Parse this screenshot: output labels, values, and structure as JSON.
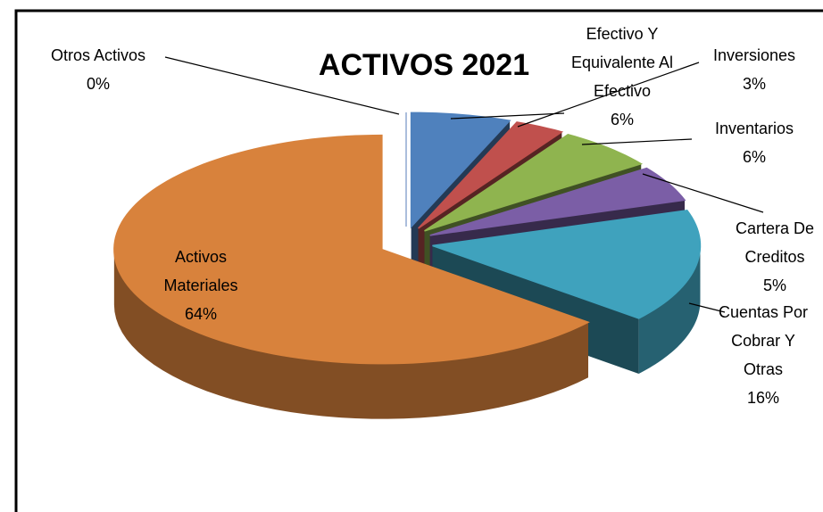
{
  "chart_data": {
    "type": "pie3d",
    "title": "ACTIVOS 2021",
    "categories": [
      "Otros Activos",
      "Efectivo Y Equivalente Al Efectivo",
      "Inversiones",
      "Inventarios",
      "Cartera De Creditos",
      "Cuentas Por Cobrar Y Otras",
      "Activos Materiales"
    ],
    "values": [
      0,
      6,
      3,
      6,
      5,
      16,
      64
    ],
    "value_labels": [
      "0%",
      "6%",
      "3%",
      "6%",
      "5%",
      "16%",
      "64%"
    ],
    "colors": [
      "#8fa9d1",
      "#4f81bd",
      "#c0504d",
      "#8fb44f",
      "#7b5ea6",
      "#3fa2bd",
      "#d8823c"
    ]
  }
}
